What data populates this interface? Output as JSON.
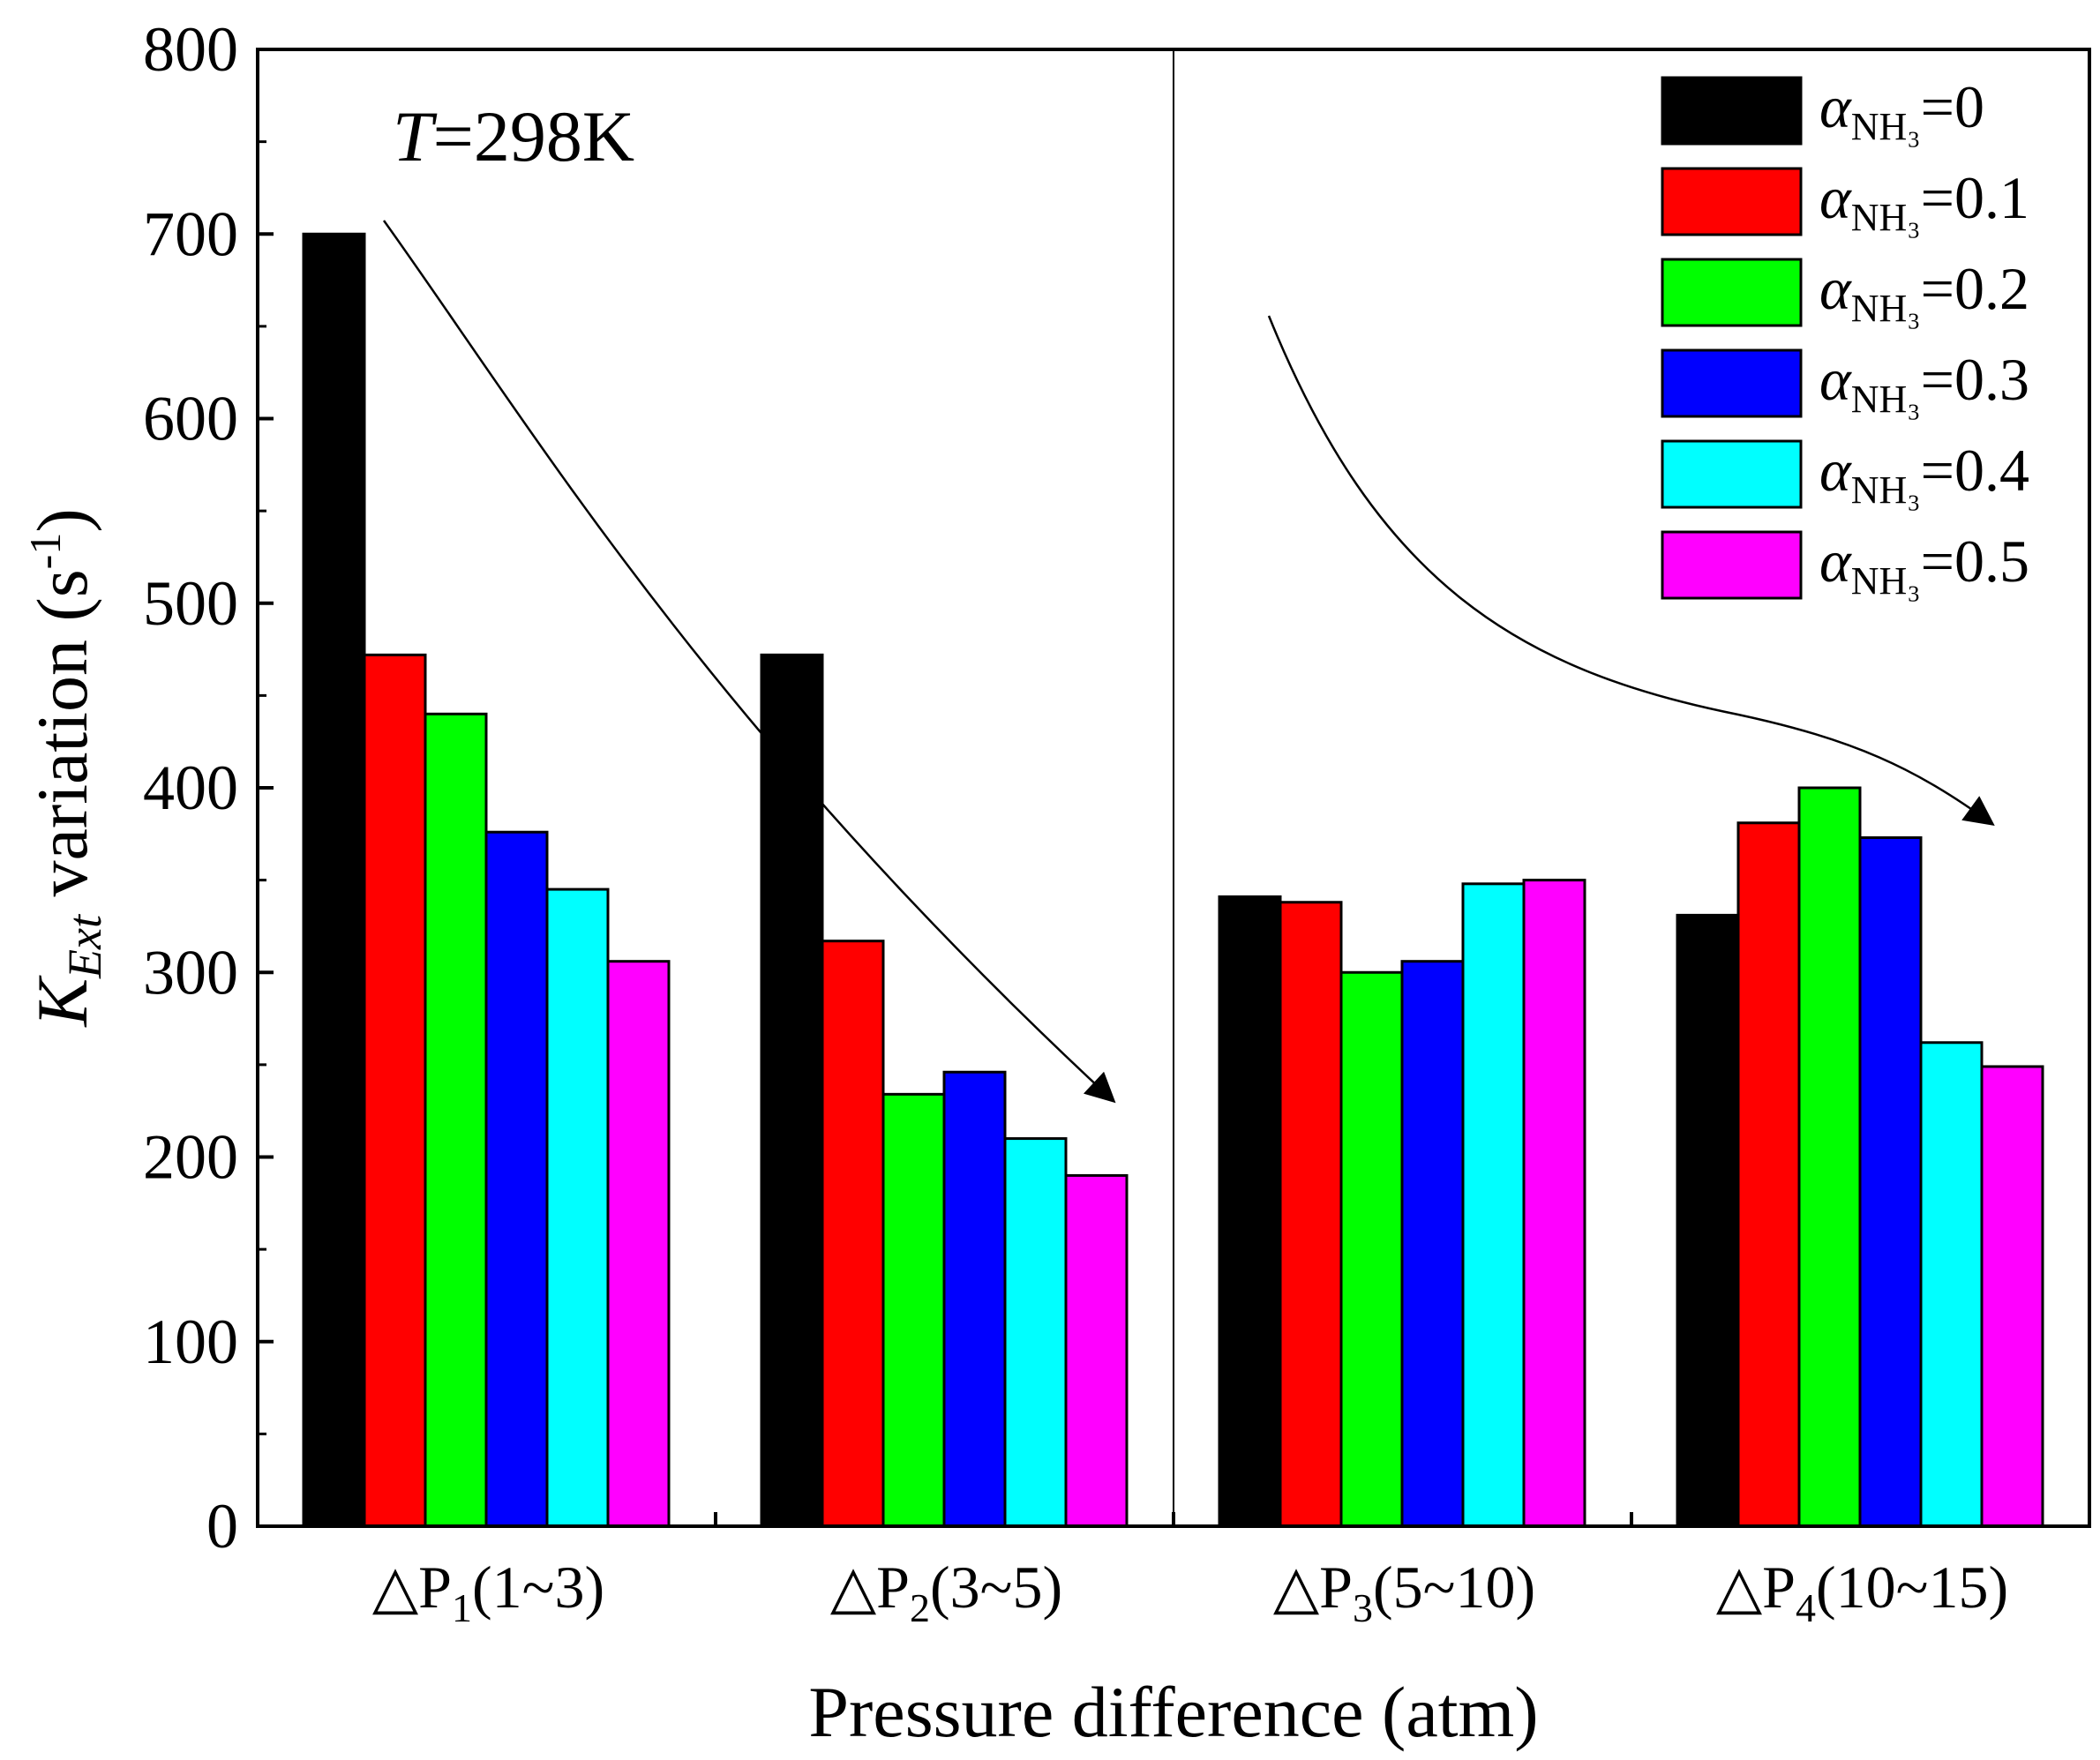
{
  "chart_data": {
    "type": "bar",
    "title": "",
    "annotation": {
      "italic": "T",
      "rest": "=298K"
    },
    "xlabel": "Pressure difference (atm)",
    "ylabel": {
      "main": "K",
      "sub": "Ext",
      "rest": " variation (s",
      "sup": "-1",
      "close": ")"
    },
    "ylim": [
      0,
      800
    ],
    "yticks": [
      0,
      100,
      200,
      300,
      400,
      500,
      600,
      700,
      800
    ],
    "categories": [
      {
        "prefix": "△P",
        "sub": "1",
        "suffix": "(1~3)"
      },
      {
        "prefix": "△P",
        "sub": "2",
        "suffix": "(3~5)"
      },
      {
        "prefix": "△P",
        "sub": "3",
        "suffix": "(5~10)"
      },
      {
        "prefix": "△P",
        "sub": "4",
        "suffix": "(10~15)"
      }
    ],
    "series": [
      {
        "name": "0",
        "color": "#000000",
        "values": [
          700,
          472,
          341,
          331
        ]
      },
      {
        "name": "0.1",
        "color": "#ff0000",
        "values": [
          472,
          317,
          338,
          381
        ]
      },
      {
        "name": "0.2",
        "color": "#00ff00",
        "values": [
          440,
          234,
          300,
          400
        ]
      },
      {
        "name": "0.3",
        "color": "#0000ff",
        "values": [
          376,
          246,
          306,
          373
        ]
      },
      {
        "name": "0.4",
        "color": "#00ffff",
        "values": [
          345,
          210,
          348,
          262
        ]
      },
      {
        "name": "0.5",
        "color": "#ff00ff",
        "values": [
          306,
          190,
          350,
          249
        ]
      }
    ],
    "legend": {
      "position": "top-right",
      "symbol": "α",
      "sub": "NH₃",
      "eq": "="
    }
  }
}
